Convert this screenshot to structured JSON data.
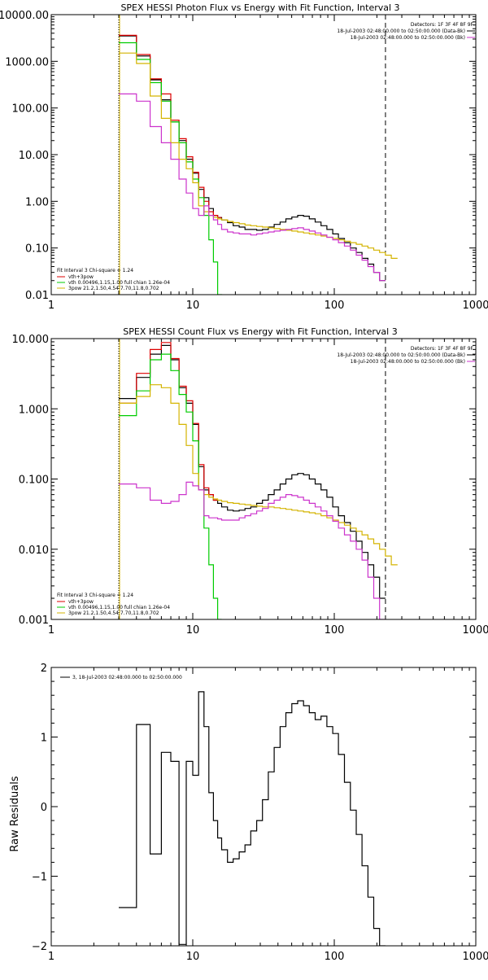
{
  "chart_data": [
    {
      "type": "line",
      "title": "SPEX HESSI Photon Flux vs Energy with Fit Function, Interval 3",
      "xscale": "log",
      "yscale": "log",
      "xlim": [
        1,
        1000
      ],
      "ylim": [
        0.01,
        10000
      ],
      "x_ticks": [
        "1",
        "10",
        "100",
        "1000"
      ],
      "y_ticks": [
        "0.01",
        "0.10",
        "1.00",
        "10.00",
        "100.00",
        "1000.00",
        "10000.00"
      ],
      "vlines": [
        {
          "x": 3,
          "style": "dotted",
          "color": "#000000"
        },
        {
          "x": 3,
          "style": "solid",
          "color": "#d4b400"
        },
        {
          "x": 230,
          "style": "dashed",
          "color": "#000000"
        }
      ],
      "legend_right": [
        "Detectors: 1F 3F 4F 8F 9F",
        "18-Jul-2003 02:48:00.000 to 02:50:00.000 (Data-Bk)",
        "18-Jul-2003 02:48:00.000 to 02:50:00.000 (Bk)"
      ],
      "legend_right_colors": [
        "",
        "#000000",
        "#cc33cc"
      ],
      "legend_left": [
        "Fit Interval 3   Chi-square = 1.24",
        "vth+3pow",
        "vth 0.00496,1.15,1.00  full chian 1.26e-04",
        "3pow 21.2,1.50,4.54,7.70,11.8,0.702"
      ],
      "legend_left_colors": [
        "",
        "#dd0000",
        "#00cc00",
        "#d4b400"
      ],
      "edges": [
        3,
        4,
        5,
        6,
        7,
        8,
        9,
        10,
        11,
        12,
        13,
        14,
        15,
        16,
        17.6,
        19.3,
        21.3,
        23.4,
        25.7,
        28.3,
        31.1,
        34.2,
        37.6,
        41.4,
        45.5,
        50.1,
        55.1,
        60.6,
        66.6,
        73.3,
        80.6,
        88.7,
        97.5,
        107,
        118,
        130,
        143,
        157,
        173,
        190,
        209,
        230,
        253,
        280
      ],
      "series": [
        {
          "name": "Data-Bk",
          "color": "#000000",
          "values": [
            3500,
            1300,
            400,
            150,
            50,
            20,
            8,
            4,
            1.8,
            1.2,
            0.7,
            0.5,
            0.45,
            0.4,
            0.35,
            0.3,
            0.28,
            0.25,
            0.25,
            0.24,
            0.25,
            0.28,
            0.32,
            0.36,
            0.42,
            0.46,
            0.5,
            0.48,
            0.42,
            0.36,
            0.3,
            0.25,
            0.2,
            0.16,
            0.13,
            0.1,
            0.08,
            0.06,
            0.045,
            0.03,
            0.02
          ]
        },
        {
          "name": "vth+3pow",
          "color": "#dd0000",
          "values": [
            3600,
            1400,
            420,
            200,
            55,
            22,
            9,
            4.2,
            2,
            1,
            0.6,
            0.5,
            0.45
          ]
        },
        {
          "name": "vth",
          "color": "#00cc00",
          "values": [
            2500,
            1100,
            350,
            140,
            50,
            18,
            7,
            3,
            1.2,
            0.5,
            0.15,
            0.05,
            0.01,
            0.001
          ]
        },
        {
          "name": "3pow",
          "color": "#d4b400",
          "values": [
            1500,
            900,
            180,
            60,
            18,
            8,
            5,
            2.5,
            0.8,
            0.6,
            0.5,
            0.45,
            0.42,
            0.4,
            0.37,
            0.35,
            0.33,
            0.31,
            0.3,
            0.29,
            0.28,
            0.27,
            0.26,
            0.25,
            0.24,
            0.23,
            0.22,
            0.21,
            0.2,
            0.19,
            0.18,
            0.17,
            0.16,
            0.15,
            0.14,
            0.13,
            0.12,
            0.11,
            0.1,
            0.09,
            0.08,
            0.07,
            0.06
          ]
        },
        {
          "name": "Bk",
          "color": "#cc33cc",
          "values": [
            200,
            140,
            40,
            18,
            8,
            3,
            1.5,
            0.7,
            0.5,
            0.8,
            0.5,
            0.4,
            0.32,
            0.25,
            0.22,
            0.21,
            0.2,
            0.2,
            0.19,
            0.2,
            0.21,
            0.22,
            0.23,
            0.24,
            0.25,
            0.26,
            0.27,
            0.25,
            0.23,
            0.21,
            0.19,
            0.17,
            0.15,
            0.13,
            0.11,
            0.09,
            0.07,
            0.055,
            0.04,
            0.03,
            0.02
          ]
        }
      ]
    },
    {
      "type": "line",
      "title": "SPEX HESSI Count Flux vs Energy with Fit Function, Interval 3",
      "xscale": "log",
      "yscale": "log",
      "xlim": [
        1,
        1000
      ],
      "ylim": [
        0.001,
        10
      ],
      "x_ticks": [
        "1",
        "10",
        "100",
        "1000"
      ],
      "y_ticks": [
        "0.001",
        "0.010",
        "0.100",
        "1.000",
        "10.000"
      ],
      "vlines": [
        {
          "x": 3,
          "style": "dotted",
          "color": "#000000"
        },
        {
          "x": 3,
          "style": "solid",
          "color": "#d4b400"
        },
        {
          "x": 230,
          "style": "dashed",
          "color": "#000000"
        }
      ],
      "legend_right": [
        "Detectors: 1F 3F 4F 8F 9F",
        "18-Jul-2003 02:48:00.000 to 02:50:00.000 (Data-Bk)",
        "18-Jul-2003 02:48:00.000 to 02:50:00.000 (Bk)"
      ],
      "legend_right_colors": [
        "",
        "#000000",
        "#cc33cc"
      ],
      "legend_left": [
        "Fit Interval 3   Chi-square = 1.24",
        "vth+3pow",
        "vth 0.00496,1.15,1.00  full chian 1.26e-04",
        "3pow 21.2,1.50,4.54,7.70,11.8,0.702"
      ],
      "legend_left_colors": [
        "",
        "#dd0000",
        "#00cc00",
        "#d4b400"
      ],
      "edges": [
        3,
        4,
        5,
        6,
        7,
        8,
        9,
        10,
        11,
        12,
        13,
        14,
        15,
        16,
        17.6,
        19.3,
        21.3,
        23.4,
        25.7,
        28.3,
        31.1,
        34.2,
        37.6,
        41.4,
        45.5,
        50.1,
        55.1,
        60.6,
        66.6,
        73.3,
        80.6,
        88.7,
        97.5,
        107,
        118,
        130,
        143,
        157,
        173,
        190,
        209,
        230,
        253,
        280
      ],
      "series": [
        {
          "name": "Data-Bk",
          "color": "#000000",
          "values": [
            1.4,
            2.8,
            6,
            8,
            5,
            2,
            1.2,
            0.6,
            0.15,
            0.07,
            0.06,
            0.05,
            0.045,
            0.04,
            0.036,
            0.035,
            0.036,
            0.038,
            0.04,
            0.045,
            0.05,
            0.06,
            0.07,
            0.085,
            0.1,
            0.115,
            0.12,
            0.115,
            0.1,
            0.085,
            0.07,
            0.055,
            0.04,
            0.03,
            0.024,
            0.018,
            0.013,
            0.009,
            0.006,
            0.004,
            0.002
          ]
        },
        {
          "name": "vth+3pow",
          "color": "#dd0000",
          "values": [
            1.2,
            3.2,
            7,
            8.8,
            5.2,
            2.1,
            1.3,
            0.62,
            0.16,
            0.075,
            0.06,
            0.05
          ]
        },
        {
          "name": "vth",
          "color": "#00cc00",
          "values": [
            0.8,
            1.8,
            5,
            6,
            3.5,
            1.6,
            0.9,
            0.35,
            0.07,
            0.02,
            0.006,
            0.002,
            0.001
          ]
        },
        {
          "name": "3pow",
          "color": "#d4b400",
          "values": [
            1.2,
            1.5,
            2.2,
            2,
            1.2,
            0.6,
            0.3,
            0.12,
            0.07,
            0.06,
            0.055,
            0.052,
            0.05,
            0.048,
            0.046,
            0.045,
            0.044,
            0.043,
            0.042,
            0.041,
            0.04,
            0.04,
            0.039,
            0.038,
            0.037,
            0.036,
            0.035,
            0.034,
            0.033,
            0.032,
            0.03,
            0.028,
            0.026,
            0.024,
            0.022,
            0.02,
            0.018,
            0.016,
            0.014,
            0.012,
            0.01,
            0.008,
            0.006
          ]
        },
        {
          "name": "Bk",
          "color": "#cc33cc",
          "values": [
            0.085,
            0.075,
            0.05,
            0.045,
            0.048,
            0.06,
            0.09,
            0.08,
            0.07,
            0.03,
            0.028,
            0.028,
            0.027,
            0.026,
            0.026,
            0.026,
            0.028,
            0.03,
            0.032,
            0.035,
            0.038,
            0.045,
            0.05,
            0.055,
            0.06,
            0.058,
            0.055,
            0.05,
            0.045,
            0.04,
            0.035,
            0.03,
            0.025,
            0.02,
            0.016,
            0.013,
            0.01,
            0.007,
            0.004,
            0.002,
            0.001
          ]
        }
      ]
    },
    {
      "type": "line",
      "title": "",
      "ylabel": "Raw Residuals",
      "xscale": "log",
      "yscale": "linear",
      "xlim": [
        1,
        1000
      ],
      "ylim": [
        -2,
        2
      ],
      "x_ticks": [
        "1",
        "10",
        "100",
        "1000"
      ],
      "y_ticks": [
        "−2",
        "−1",
        "0",
        "1",
        "2"
      ],
      "legend": "3, 18-Jul-2003 02:48:00.000 to 02:50:00.000",
      "edges": [
        3,
        4,
        5,
        6,
        7,
        8,
        9,
        10,
        11,
        12,
        13,
        14,
        15,
        16,
        17.6,
        19.3,
        21.3,
        23.4,
        25.7,
        28.3,
        31.1,
        34.2,
        37.6,
        41.4,
        45.5,
        50.1,
        55.1,
        60.6,
        66.6,
        73.3,
        80.6,
        88.7,
        97.5,
        107,
        118,
        130,
        143,
        157,
        173,
        190,
        209,
        230
      ],
      "series": [
        {
          "name": "",
          "color": "#000000",
          "values": [
            -1.45,
            1.18,
            -0.68,
            0.78,
            0.65,
            -1.98,
            0.65,
            0.45,
            1.65,
            1.15,
            0.2,
            -0.2,
            -0.45,
            -0.62,
            -0.8,
            -0.75,
            -0.65,
            -0.55,
            -0.35,
            -0.2,
            0.1,
            0.5,
            0.85,
            1.15,
            1.35,
            1.48,
            1.52,
            1.45,
            1.35,
            1.25,
            1.3,
            1.15,
            1.05,
            0.75,
            0.35,
            -0.05,
            -0.4,
            -0.85,
            -1.3,
            -1.75,
            -2
          ]
        }
      ]
    }
  ]
}
